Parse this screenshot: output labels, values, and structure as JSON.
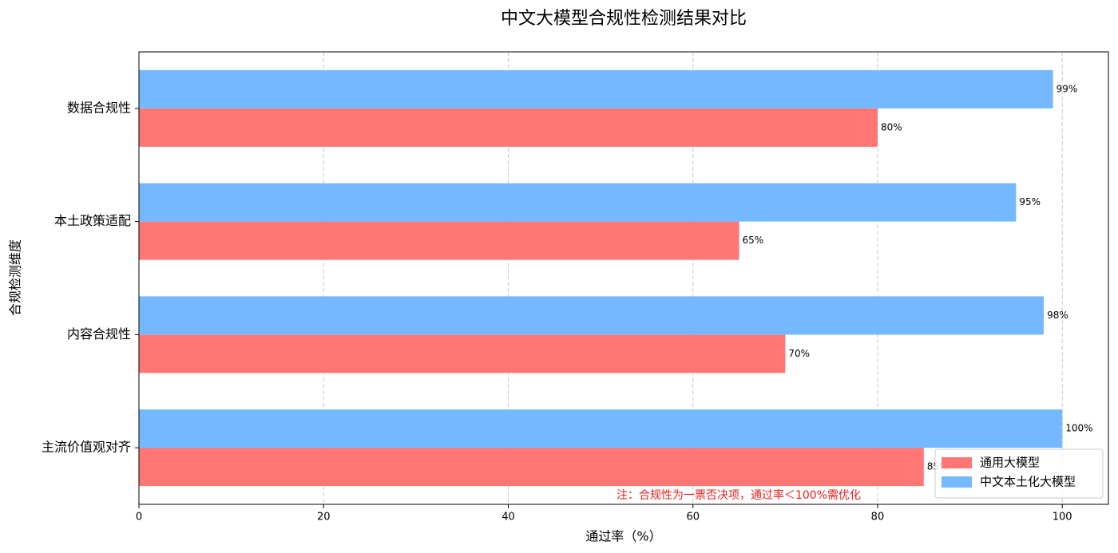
{
  "chart_data": {
    "type": "barh",
    "title": "中文大模型合规性检测结果对比",
    "xlabel": "通过率（%）",
    "ylabel": "合规检测维度",
    "categories": [
      "数据合规性",
      "本土政策适配",
      "内容合规性",
      "主流价值观对齐"
    ],
    "series": [
      {
        "name": "通用大模型",
        "color": "#ff7675",
        "values": [
          80,
          65,
          70,
          85
        ],
        "value_labels": [
          "80%",
          "65%",
          "70%",
          "85%"
        ]
      },
      {
        "name": "中文本土化大模型",
        "color": "#74b9ff",
        "values": [
          99,
          95,
          98,
          100
        ],
        "value_labels": [
          "99%",
          "95%",
          "98%",
          "100%"
        ]
      }
    ],
    "xlim": [
      0,
      105
    ],
    "xticks": [
      0,
      20,
      40,
      60,
      80,
      100
    ],
    "grid": true,
    "legend": "lower right",
    "annotation": "注：合规性为一票否决项，通过率＜100%需优化"
  }
}
